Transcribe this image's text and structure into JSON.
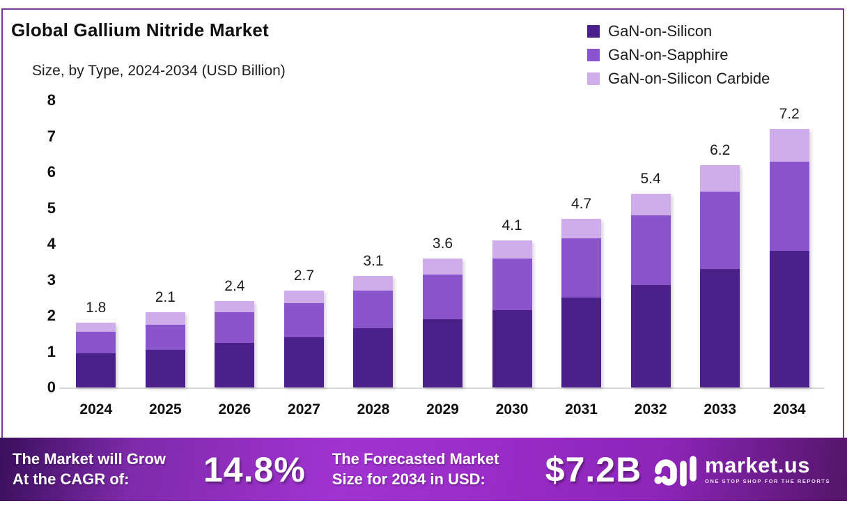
{
  "title": "Global Gallium Nitride Market",
  "subtitle": "Size, by Type, 2024-2034 (USD Billion)",
  "legend": [
    {
      "label": "GaN-on-Silicon",
      "color": "#4b2088"
    },
    {
      "label": "GaN-on-Sapphire",
      "color": "#8a54cb"
    },
    {
      "label": "GaN-on-Silicon Carbide",
      "color": "#cfadea"
    }
  ],
  "chart_data": {
    "type": "bar",
    "stacked": true,
    "title": "Global Gallium Nitride Market Size, by Type, 2024-2034 (USD Billion)",
    "categories": [
      "2024",
      "2025",
      "2026",
      "2027",
      "2028",
      "2029",
      "2030",
      "2031",
      "2032",
      "2033",
      "2034"
    ],
    "series": [
      {
        "name": "GaN-on-Silicon",
        "color": "#4b2088",
        "values": [
          0.95,
          1.05,
          1.25,
          1.4,
          1.65,
          1.9,
          2.15,
          2.5,
          2.85,
          3.3,
          3.8
        ]
      },
      {
        "name": "GaN-on-Sapphire",
        "color": "#8a54cb",
        "values": [
          0.6,
          0.7,
          0.85,
          0.95,
          1.05,
          1.25,
          1.45,
          1.65,
          1.95,
          2.15,
          2.5
        ]
      },
      {
        "name": "GaN-on-Silicon Carbide",
        "color": "#cfadea",
        "values": [
          0.25,
          0.35,
          0.3,
          0.35,
          0.4,
          0.45,
          0.5,
          0.55,
          0.6,
          0.75,
          0.9
        ]
      }
    ],
    "totals": [
      "1.8",
      "2.1",
      "2.4",
      "2.7",
      "3.1",
      "3.6",
      "4.1",
      "4.7",
      "5.4",
      "6.2",
      "7.2"
    ],
    "xlabel": "",
    "ylabel": "",
    "ylim": [
      0,
      8
    ],
    "yticks": [
      0,
      1,
      2,
      3,
      4,
      5,
      6,
      7,
      8
    ],
    "grid": false,
    "legend_position": "top-right"
  },
  "banner": {
    "cagr_label_line1": "The Market will Grow",
    "cagr_label_line2": "At the CAGR of:",
    "cagr_value": "14.8%",
    "forecast_label_line1": "The Forecasted Market",
    "forecast_label_line2": "Size for 2034 in USD:",
    "forecast_value": "$7.2B",
    "brand_name": "market.us",
    "brand_tagline": "ONE STOP SHOP FOR THE REPORTS"
  },
  "colors": {
    "frame_border": "#7b3996",
    "axis_line": "#d9d9d9",
    "banner_gradient_mid": "#9c2fc4",
    "banner_gradient_edge": "#3a0f5c"
  }
}
